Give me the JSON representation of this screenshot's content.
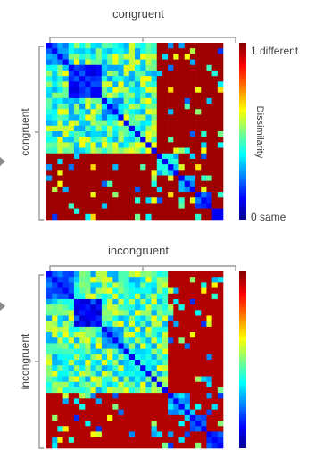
{
  "colors": {
    "colormap": [
      "#00008f",
      "#0000ff",
      "#0080ff",
      "#00ffff",
      "#80ff80",
      "#ffff00",
      "#ff8000",
      "#ff0000",
      "#800000"
    ],
    "text": "#404040",
    "bracket": "#9a9a9a"
  },
  "colorbar": {
    "max_label": "1 different",
    "min_label": "0 same",
    "title": "Dissimilarity",
    "range": [
      0,
      1
    ]
  },
  "chart_data": [
    {
      "type": "heatmap",
      "title": "congruent",
      "xlabel": "congruent",
      "ylabel": "congruent",
      "value_range": [
        0,
        1
      ],
      "groups": [
        {
          "size": 4,
          "within": 0.25
        },
        {
          "size": 6,
          "within": 0.15
        },
        {
          "size": 4,
          "within": 0.3
        },
        {
          "size": 4,
          "within": 0.4
        },
        {
          "size": 2,
          "within": 0.6
        },
        {
          "size": 4,
          "within": 0.35
        },
        {
          "size": 3,
          "within": 0.3
        },
        {
          "size": 3,
          "within": 0.2
        },
        {
          "size": 2,
          "within": 0.15
        }
      ],
      "background": 0.97,
      "note": "first five groups form a lower-dissimilarity super-block (~0.45); diagonal ~0.12"
    },
    {
      "type": "heatmap",
      "title": "incongruent",
      "xlabel": "incongruent",
      "ylabel": "incongruent",
      "value_range": [
        0,
        1
      ],
      "groups": [
        {
          "size": 5,
          "within": 0.25
        },
        {
          "size": 5,
          "within": 0.15
        },
        {
          "size": 4,
          "within": 0.3
        },
        {
          "size": 5,
          "within": 0.35
        },
        {
          "size": 3,
          "within": 0.5
        },
        {
          "size": 4,
          "within": 0.3
        },
        {
          "size": 3,
          "within": 0.25
        },
        {
          "size": 3,
          "within": 0.2
        }
      ],
      "background": 0.95,
      "note": "first five groups form a lower-dissimilarity super-block (~0.5); diagonal ~0.12"
    }
  ]
}
